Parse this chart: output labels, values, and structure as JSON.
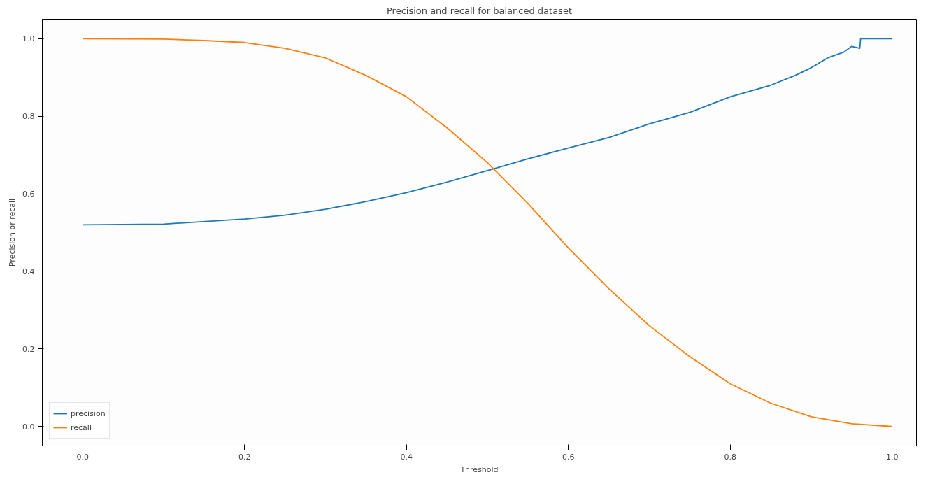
{
  "chart_data": {
    "type": "line",
    "title": "Precision and recall for balanced dataset",
    "xlabel": "Threshold",
    "ylabel": "Precision or recall",
    "xlim": [
      -0.05,
      1.03
    ],
    "ylim": [
      -0.05,
      1.05
    ],
    "xticks": [
      {
        "value": 0,
        "label": "0.0"
      },
      0.2,
      0.4,
      0.6,
      0.8,
      {
        "value": 1,
        "label": "1.0"
      }
    ],
    "yticks": [
      {
        "value": 0,
        "label": "0.0"
      },
      0.2,
      0.4,
      0.6,
      0.8,
      {
        "value": 1,
        "label": "1.0"
      }
    ],
    "grid": false,
    "legend": "bottom left",
    "line_style": "solid",
    "marker": "none",
    "series": [
      {
        "name": "precision",
        "color": "#1f77b4",
        "x": [
          0,
          0.1,
          0.2,
          0.25,
          0.3,
          0.35,
          0.4,
          0.45,
          0.5,
          0.55,
          0.6,
          0.65,
          0.7,
          0.75,
          0.8,
          0.85,
          0.88,
          0.9,
          0.92,
          0.94,
          0.95,
          0.96,
          0.961,
          1.0
        ],
        "values": [
          0.52,
          0.522,
          0.535,
          0.545,
          0.56,
          0.58,
          0.603,
          0.63,
          0.66,
          0.69,
          0.718,
          0.745,
          0.78,
          0.81,
          0.85,
          0.88,
          0.905,
          0.925,
          0.95,
          0.965,
          0.98,
          0.975,
          1.0,
          1.0
        ]
      },
      {
        "name": "recall",
        "color": "#ff7f0e",
        "x": [
          0,
          0.1,
          0.15,
          0.2,
          0.25,
          0.3,
          0.35,
          0.4,
          0.45,
          0.5,
          0.55,
          0.6,
          0.65,
          0.7,
          0.75,
          0.8,
          0.85,
          0.9,
          0.95,
          1.0
        ],
        "values": [
          1.0,
          0.999,
          0.995,
          0.99,
          0.975,
          0.95,
          0.905,
          0.85,
          0.77,
          0.68,
          0.575,
          0.46,
          0.355,
          0.26,
          0.18,
          0.11,
          0.06,
          0.025,
          0.007,
          0.0
        ]
      }
    ]
  }
}
